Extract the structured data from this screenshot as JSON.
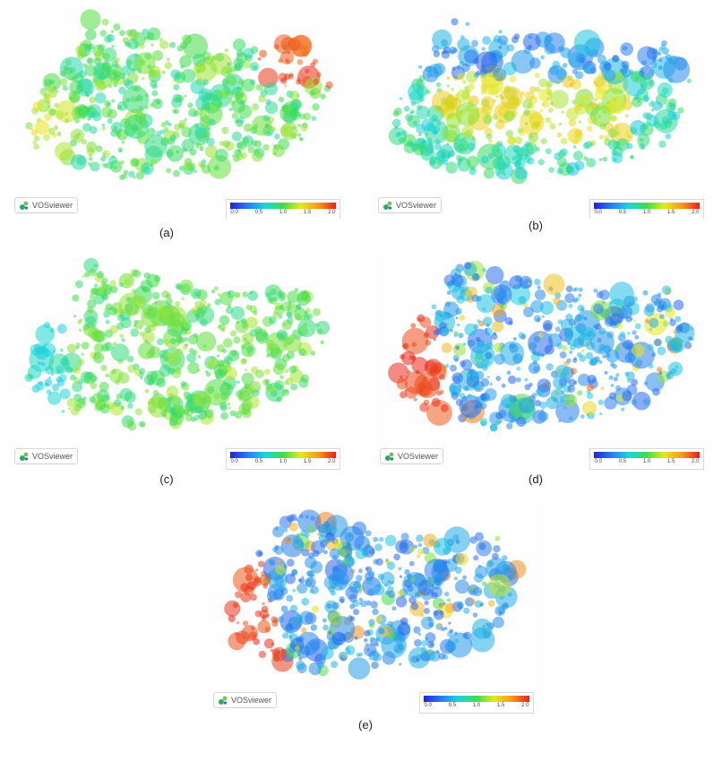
{
  "colors": {
    "scale": [
      "#2222dd",
      "#2a7cf0",
      "#19d7dc",
      "#3ddc48",
      "#e8e81c",
      "#f59a1a",
      "#e8201c"
    ]
  },
  "brand": {
    "name": "VOSviewer",
    "icon": "vosviewer-logo-icon"
  },
  "legend_ticks": [
    "0.0",
    "0.5",
    "1.0",
    "1.5",
    "2.0"
  ],
  "panels": [
    {
      "caption": "(a)",
      "color_tendency": "mixed green-cyan with red upper-right cluster"
    },
    {
      "caption": "(b)",
      "color_tendency": "blue top, yellow-orange center"
    },
    {
      "caption": "(c)",
      "color_tendency": "mostly green-cyan with yellow accents"
    },
    {
      "caption": "(d)",
      "color_tendency": "red left edge, blue elsewhere"
    },
    {
      "caption": "(e)",
      "color_tendency": "red left edge, blue elsewhere"
    }
  ]
}
